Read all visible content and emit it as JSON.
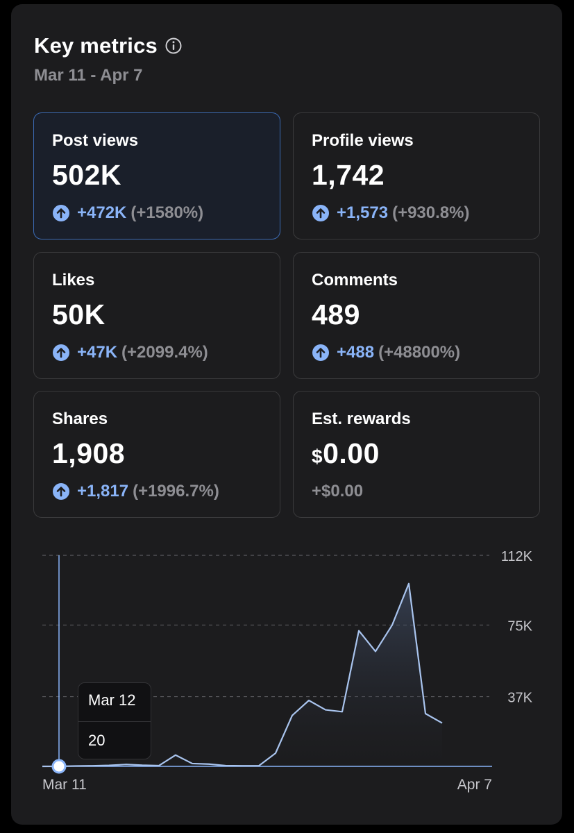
{
  "header": {
    "title": "Key metrics",
    "date_range": "Mar 11 - Apr 7"
  },
  "colors": {
    "accent": "#8ab4f8",
    "muted": "#8e8e93",
    "selected_border": "#3b6bb5"
  },
  "metrics": [
    {
      "label": "Post views",
      "value": "502K",
      "delta_abs": "+472K",
      "delta_pct": "(+1580%)",
      "trend_icon": "arrow-up-circle-icon",
      "selected": true
    },
    {
      "label": "Profile views",
      "value": "1,742",
      "delta_abs": "+1,573",
      "delta_pct": "(+930.8%)",
      "trend_icon": "arrow-up-circle-icon"
    },
    {
      "label": "Likes",
      "value": "50K",
      "delta_abs": "+47K",
      "delta_pct": "(+2099.4%)",
      "trend_icon": "arrow-up-circle-icon"
    },
    {
      "label": "Comments",
      "value": "489",
      "delta_abs": "+488",
      "delta_pct": "(+48800%)",
      "trend_icon": "arrow-up-circle-icon"
    },
    {
      "label": "Shares",
      "value": "1,908",
      "delta_abs": "+1,817",
      "delta_pct": "(+1996.7%)",
      "trend_icon": "arrow-up-circle-icon"
    },
    {
      "label": "Est. rewards",
      "value_currency": "$",
      "value": "0.00",
      "delta_plain": "+$0.00"
    }
  ],
  "tooltip": {
    "date": "Mar 12",
    "value": "20"
  },
  "chart_data": {
    "type": "area",
    "series_name": "Post views",
    "x_start_label": "Mar 11",
    "x_end_label": "Apr 7",
    "x": [
      0,
      1,
      2,
      3,
      4,
      5,
      6,
      7,
      8,
      9,
      10,
      11,
      12,
      13,
      14,
      15,
      16,
      17,
      18,
      19,
      20,
      21,
      22,
      23,
      24,
      25,
      26,
      27
    ],
    "values": [
      0,
      20,
      200,
      300,
      500,
      1000,
      600,
      400,
      6000,
      1500,
      1200,
      400,
      300,
      300,
      7000,
      27000,
      35000,
      30000,
      29000,
      72000,
      61000,
      75000,
      97000,
      28000,
      23000,
      null,
      null,
      null
    ],
    "ylim": [
      0,
      112000
    ],
    "y_ticks": [
      {
        "value": 112000,
        "label": "112K"
      },
      {
        "value": 75000,
        "label": "75K"
      },
      {
        "value": 37000,
        "label": "37K"
      }
    ],
    "highlight_index": 0,
    "grid": true
  }
}
